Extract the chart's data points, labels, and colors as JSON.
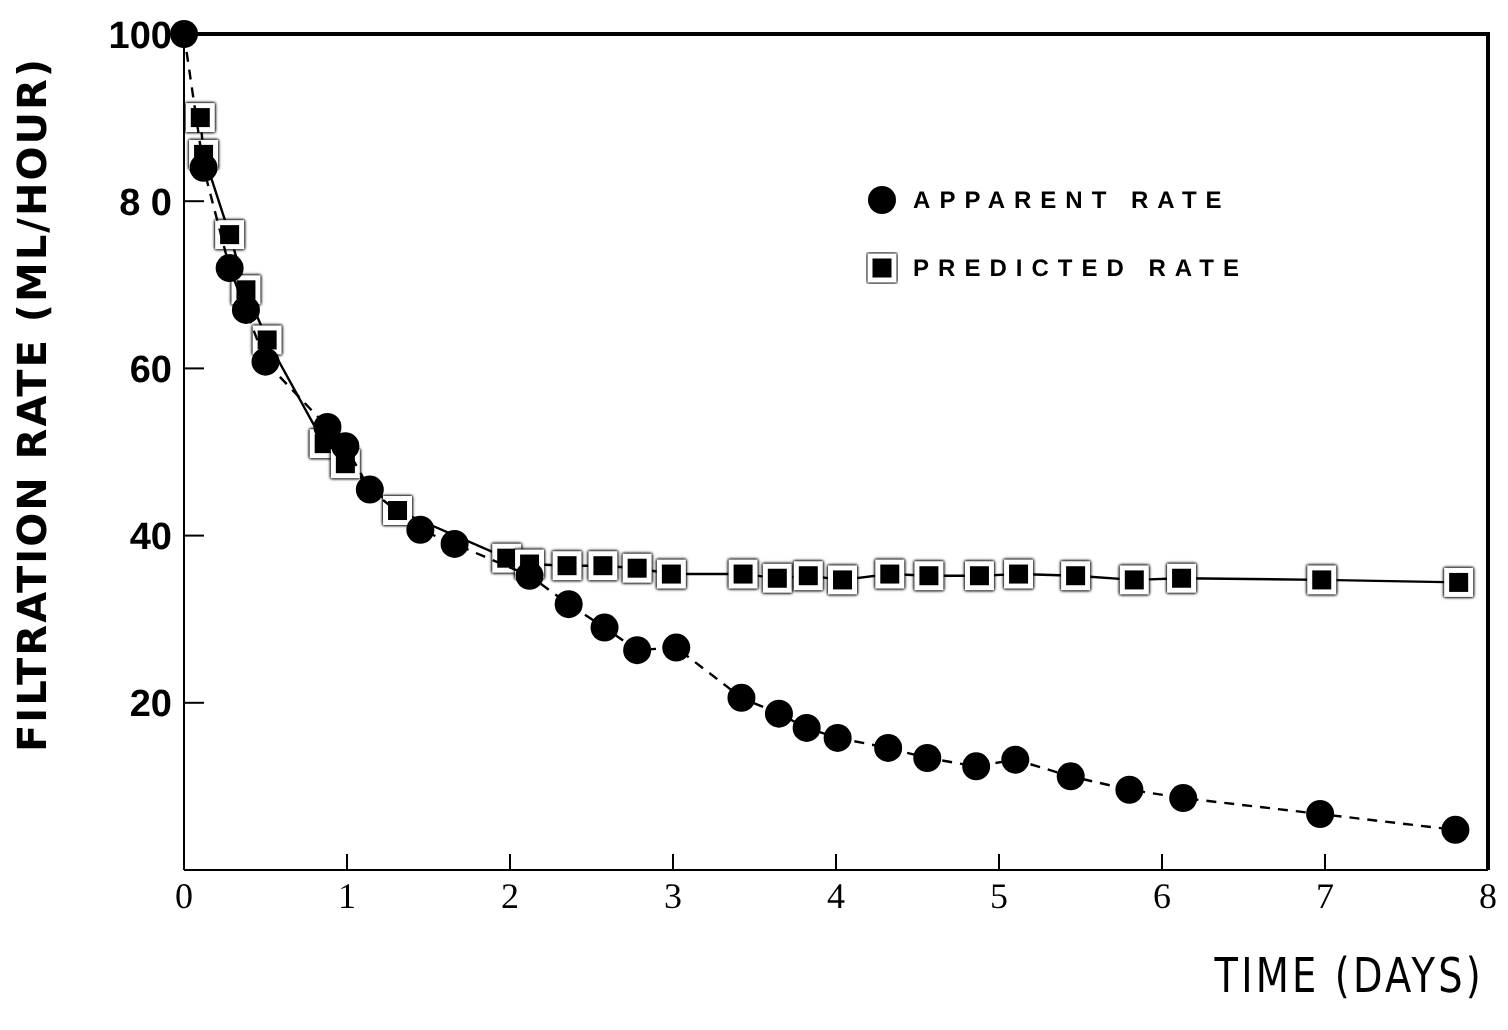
{
  "chart_data": {
    "type": "line",
    "xlabel": "TIME (DAYS)",
    "ylabel": "FILTRATION RATE (ML/HOUR)",
    "xlim": [
      0,
      8
    ],
    "xticks": [
      0,
      1,
      2,
      3,
      4,
      5,
      6,
      7,
      8
    ],
    "ylim": [
      0,
      100
    ],
    "yticks": [
      20,
      40,
      60,
      {
        "value": 80,
        "label": "8 0"
      },
      100
    ],
    "grid": false,
    "legend": "top right",
    "line_style": "solid",
    "series": [
      {
        "name": "APPARENT RATE",
        "color": "#000000",
        "marker": "circle",
        "line_style": "dashed",
        "x": [
          0,
          0.12,
          0.28,
          0.38,
          0.5,
          0.88,
          0.99,
          1.14,
          1.45,
          1.66,
          2.12,
          2.36,
          2.58,
          2.78,
          3.02,
          3.42,
          3.65,
          3.82,
          4.01,
          4.32,
          4.56,
          4.86,
          5.1,
          5.44,
          5.8,
          6.13,
          6.97,
          7.8
        ],
        "values": [
          100,
          84,
          72,
          67,
          60.8,
          53,
          50.7,
          45.5,
          40.7,
          39,
          35.2,
          31.8,
          29,
          26.3,
          26.6,
          20.6,
          18.7,
          17,
          15.8,
          14.6,
          13.4,
          12.4,
          13.2,
          11.2,
          9.6,
          8.6,
          6.7,
          4.8
        ]
      },
      {
        "name": "PREDICTED RATE",
        "color": "#000000",
        "marker": "square",
        "x": [
          0.1,
          0.12,
          0.28,
          0.38,
          0.51,
          0.86,
          0.99,
          1.31,
          1.98,
          2.12,
          2.35,
          2.57,
          2.78,
          2.99,
          3.43,
          3.64,
          3.83,
          4.04,
          4.33,
          4.57,
          4.88,
          5.12,
          5.47,
          5.83,
          6.12,
          6.98,
          7.82
        ],
        "values": [
          90,
          85.6,
          76,
          69.4,
          63.4,
          51,
          48.6,
          43,
          37.3,
          36.6,
          36.4,
          36.4,
          36.1,
          35.4,
          35.4,
          34.9,
          35.2,
          34.7,
          35.4,
          35.2,
          35.2,
          35.4,
          35.2,
          34.7,
          34.9,
          34.7,
          34.4
        ]
      }
    ]
  }
}
